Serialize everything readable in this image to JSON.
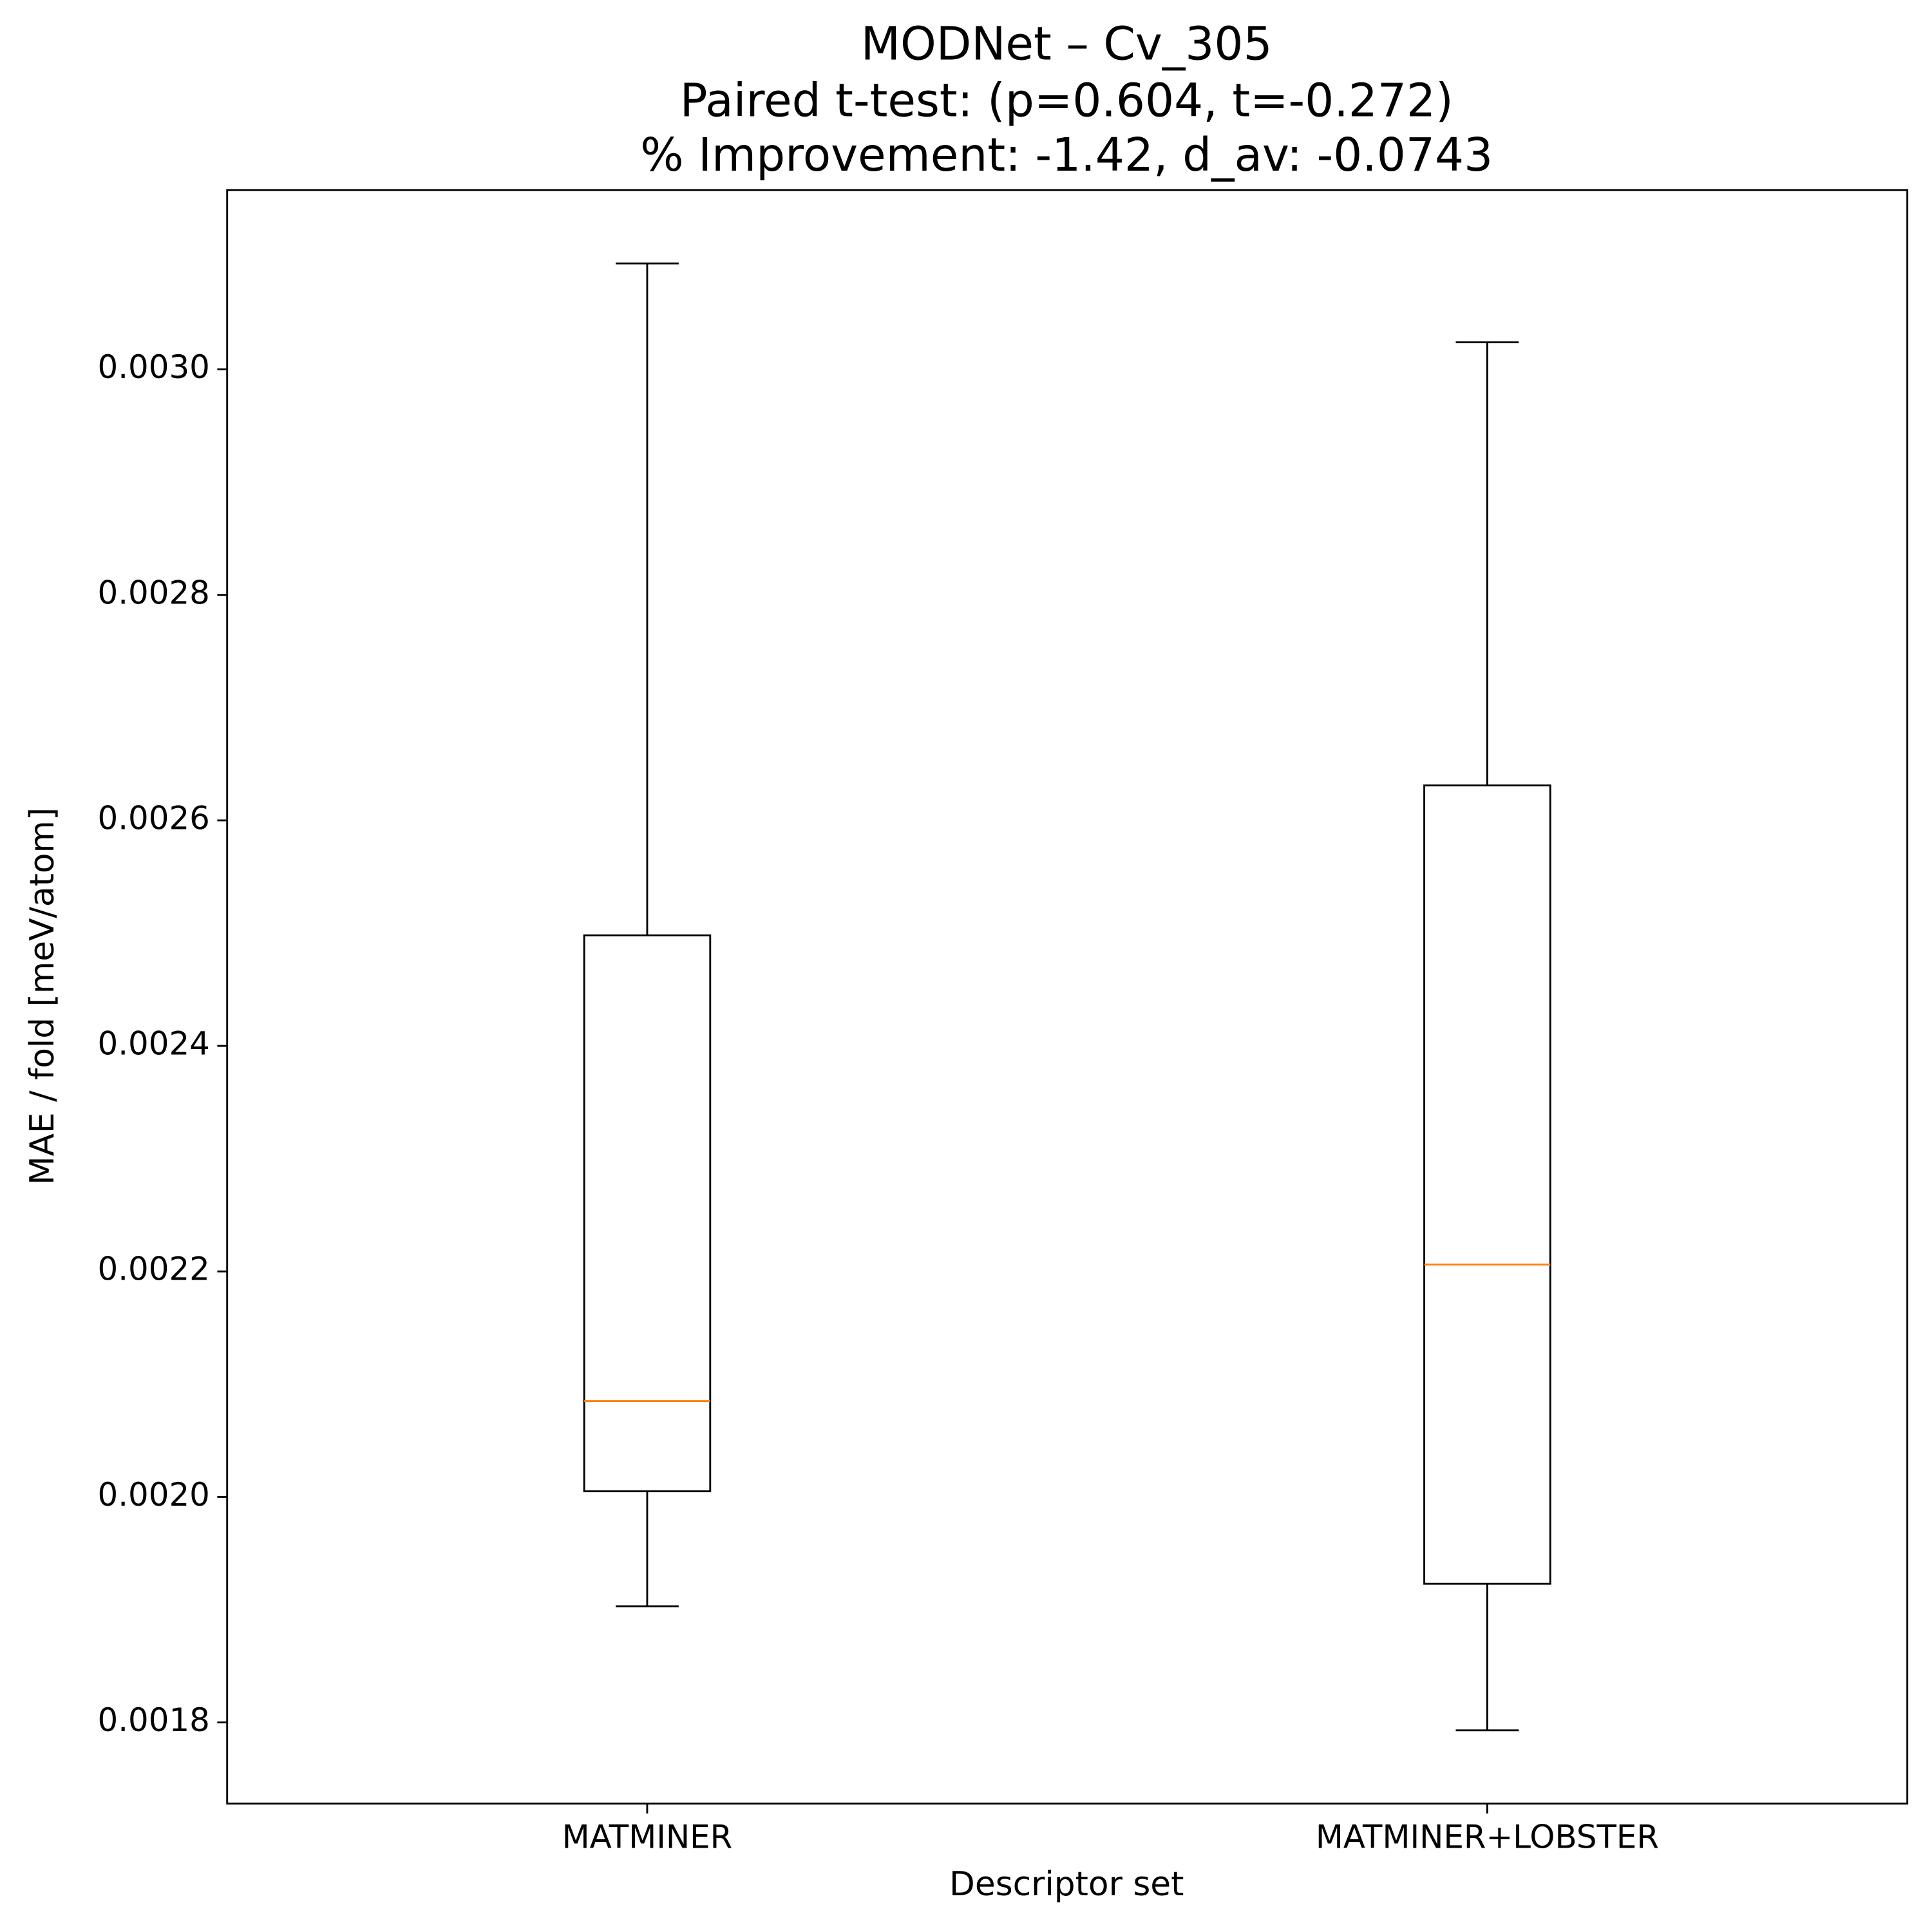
{
  "chart_data": {
    "type": "box",
    "title": "MODNet – Cv_305",
    "subtitle": [
      "Paired t-test: (p=0.604, t=-0.272)",
      "% Improvement: -1.42, d_av: -0.0743"
    ],
    "x_label": "Descriptor set",
    "y_label": "MAE / fold [meV/atom]",
    "categories": [
      "MATMINER",
      "MATMINER+LOBSTER"
    ],
    "boxes": [
      {
        "whislo": 0.001903,
        "q1": 0.002005,
        "med": 0.002085,
        "q3": 0.002498,
        "whishi": 0.003094
      },
      {
        "whislo": 0.001793,
        "q1": 0.001923,
        "med": 0.002206,
        "q3": 0.002631,
        "whishi": 0.003024
      }
    ],
    "box_color": "#000000",
    "median_color": "#ff7f0e",
    "ylim": [
      0.001728,
      0.003159
    ],
    "yticks": [
      0.0018,
      {
        "value": 0.002,
        "label": "0.0020"
      },
      0.0022,
      0.0024,
      0.0026,
      0.0028,
      {
        "value": 0.003,
        "label": "0.0030"
      }
    ]
  }
}
